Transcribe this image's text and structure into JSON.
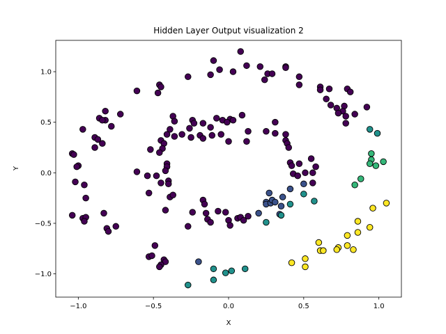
{
  "chart_data": {
    "type": "scatter",
    "title": "Hidden Layer Output visualization 2",
    "xlabel": "X",
    "ylabel": "Y",
    "xlim": [
      -1.15,
      1.15
    ],
    "ylim": [
      -1.23,
      1.31
    ],
    "xticks": [
      -1.0,
      -0.5,
      0.0,
      0.5,
      1.0
    ],
    "xtick_labels": [
      "−1.0",
      "−0.5",
      "0.0",
      "0.5",
      "1.0"
    ],
    "yticks": [
      -1.0,
      -0.5,
      0.0,
      0.5,
      1.0
    ],
    "ytick_labels": [
      "−1.0",
      "−0.5",
      "0.0",
      "0.5",
      "1.0"
    ],
    "grid": false,
    "marker_edge_color": "#000000",
    "color_map": {
      "purple": "#440154",
      "navy": "#3b528b",
      "teal": "#21918c",
      "green": "#35b779",
      "yellow": "#fde725"
    },
    "points": [
      {
        "x": 0.08,
        "y": 1.2,
        "c": "purple"
      },
      {
        "x": -0.1,
        "y": 1.11,
        "c": "purple"
      },
      {
        "x": 0.12,
        "y": 1.06,
        "c": "purple"
      },
      {
        "x": 0.21,
        "y": 1.05,
        "c": "purple"
      },
      {
        "x": 0.38,
        "y": 1.05,
        "c": "purple"
      },
      {
        "x": 0.38,
        "y": 1.04,
        "c": "purple"
      },
      {
        "x": -0.06,
        "y": 1.02,
        "c": "purple"
      },
      {
        "x": 0.03,
        "y": 1.0,
        "c": "purple"
      },
      {
        "x": 0.26,
        "y": 0.98,
        "c": "purple"
      },
      {
        "x": 0.29,
        "y": 0.98,
        "c": "purple"
      },
      {
        "x": -0.12,
        "y": 0.97,
        "c": "purple"
      },
      {
        "x": -0.27,
        "y": 0.95,
        "c": "purple"
      },
      {
        "x": 0.47,
        "y": 0.95,
        "c": "purple"
      },
      {
        "x": 0.24,
        "y": 0.92,
        "c": "purple"
      },
      {
        "x": -0.46,
        "y": 0.87,
        "c": "purple"
      },
      {
        "x": -0.45,
        "y": 0.85,
        "c": "purple"
      },
      {
        "x": 0.47,
        "y": 0.87,
        "c": "purple"
      },
      {
        "x": 0.61,
        "y": 0.85,
        "c": "purple"
      },
      {
        "x": 0.61,
        "y": 0.82,
        "c": "purple"
      },
      {
        "x": 0.67,
        "y": 0.83,
        "c": "purple"
      },
      {
        "x": 0.79,
        "y": 0.83,
        "c": "purple"
      },
      {
        "x": 0.81,
        "y": 0.8,
        "c": "purple"
      },
      {
        "x": -0.61,
        "y": 0.81,
        "c": "purple"
      },
      {
        "x": -0.47,
        "y": 0.79,
        "c": "purple"
      },
      {
        "x": 0.65,
        "y": 0.73,
        "c": "purple"
      },
      {
        "x": 0.68,
        "y": 0.67,
        "c": "purple"
      },
      {
        "x": 0.77,
        "y": 0.66,
        "c": "purple"
      },
      {
        "x": 0.72,
        "y": 0.64,
        "c": "purple"
      },
      {
        "x": 0.92,
        "y": 0.65,
        "c": "purple"
      },
      {
        "x": 0.76,
        "y": 0.61,
        "c": "purple"
      },
      {
        "x": 0.73,
        "y": 0.59,
        "c": "purple"
      },
      {
        "x": 0.84,
        "y": 0.58,
        "c": "purple"
      },
      {
        "x": 0.78,
        "y": 0.56,
        "c": "purple"
      },
      {
        "x": 0.78,
        "y": 0.49,
        "c": "purple"
      },
      {
        "x": -0.82,
        "y": 0.61,
        "c": "purple"
      },
      {
        "x": -0.72,
        "y": 0.58,
        "c": "purple"
      },
      {
        "x": -0.86,
        "y": 0.54,
        "c": "purple"
      },
      {
        "x": -0.82,
        "y": 0.52,
        "c": "purple"
      },
      {
        "x": -0.84,
        "y": 0.52,
        "c": "purple"
      },
      {
        "x": -0.78,
        "y": 0.46,
        "c": "purple"
      },
      {
        "x": -0.37,
        "y": 0.56,
        "c": "purple"
      },
      {
        "x": -0.36,
        "y": 0.51,
        "c": "purple"
      },
      {
        "x": -0.24,
        "y": 0.52,
        "c": "purple"
      },
      {
        "x": -0.23,
        "y": 0.49,
        "c": "purple"
      },
      {
        "x": -0.08,
        "y": 0.54,
        "c": "purple"
      },
      {
        "x": -0.04,
        "y": 0.52,
        "c": "purple"
      },
      {
        "x": 0.01,
        "y": 0.53,
        "c": "purple"
      },
      {
        "x": -0.01,
        "y": 0.5,
        "c": "purple"
      },
      {
        "x": 0.03,
        "y": 0.52,
        "c": "purple"
      },
      {
        "x": -0.17,
        "y": 0.49,
        "c": "purple"
      },
      {
        "x": 0.09,
        "y": 0.57,
        "c": "purple"
      },
      {
        "x": -0.12,
        "y": 0.45,
        "c": "purple"
      },
      {
        "x": -0.26,
        "y": 0.44,
        "c": "purple"
      },
      {
        "x": 0.31,
        "y": 0.5,
        "c": "purple"
      },
      {
        "x": -0.97,
        "y": 0.43,
        "c": "purple"
      },
      {
        "x": -0.89,
        "y": 0.35,
        "c": "purple"
      },
      {
        "x": -0.87,
        "y": 0.33,
        "c": "purple"
      },
      {
        "x": -0.84,
        "y": 0.29,
        "c": "purple"
      },
      {
        "x": -0.89,
        "y": 0.25,
        "c": "purple"
      },
      {
        "x": -0.39,
        "y": 0.43,
        "c": "purple"
      },
      {
        "x": -0.41,
        "y": 0.38,
        "c": "purple"
      },
      {
        "x": -0.45,
        "y": 0.32,
        "c": "purple"
      },
      {
        "x": -0.43,
        "y": 0.29,
        "c": "purple"
      },
      {
        "x": -0.52,
        "y": 0.23,
        "c": "purple"
      },
      {
        "x": -0.44,
        "y": 0.24,
        "c": "purple"
      },
      {
        "x": -0.46,
        "y": 0.2,
        "c": "purple"
      },
      {
        "x": -0.36,
        "y": 0.36,
        "c": "purple"
      },
      {
        "x": -0.31,
        "y": 0.38,
        "c": "purple"
      },
      {
        "x": -0.25,
        "y": 0.35,
        "c": "purple"
      },
      {
        "x": -0.19,
        "y": 0.37,
        "c": "purple"
      },
      {
        "x": -0.17,
        "y": 0.34,
        "c": "purple"
      },
      {
        "x": -0.11,
        "y": 0.37,
        "c": "purple"
      },
      {
        "x": -0.05,
        "y": 0.38,
        "c": "purple"
      },
      {
        "x": 0.0,
        "y": 0.31,
        "c": "purple"
      },
      {
        "x": 0.13,
        "y": 0.41,
        "c": "purple"
      },
      {
        "x": 0.12,
        "y": 0.31,
        "c": "purple"
      },
      {
        "x": 0.25,
        "y": 0.41,
        "c": "purple"
      },
      {
        "x": 0.38,
        "y": 0.38,
        "c": "purple"
      },
      {
        "x": 0.38,
        "y": 0.32,
        "c": "purple"
      },
      {
        "x": 0.39,
        "y": 0.29,
        "c": "purple"
      },
      {
        "x": 0.4,
        "y": 0.25,
        "c": "purple"
      },
      {
        "x": 0.31,
        "y": 0.39,
        "c": "purple"
      },
      {
        "x": -1.04,
        "y": 0.19,
        "c": "purple"
      },
      {
        "x": -1.03,
        "y": 0.18,
        "c": "purple"
      },
      {
        "x": -1.0,
        "y": 0.07,
        "c": "purple"
      },
      {
        "x": -1.01,
        "y": 0.06,
        "c": "purple"
      },
      {
        "x": -1.02,
        "y": -0.09,
        "c": "purple"
      },
      {
        "x": -0.96,
        "y": -0.12,
        "c": "purple"
      },
      {
        "x": -0.95,
        "y": -0.25,
        "c": "purple"
      },
      {
        "x": -0.61,
        "y": 0.01,
        "c": "purple"
      },
      {
        "x": -0.54,
        "y": -0.03,
        "c": "purple"
      },
      {
        "x": -0.48,
        "y": -0.03,
        "c": "purple"
      },
      {
        "x": -0.41,
        "y": 0.09,
        "c": "purple"
      },
      {
        "x": -0.41,
        "y": 0.06,
        "c": "purple"
      },
      {
        "x": -0.42,
        "y": 0.02,
        "c": "purple"
      },
      {
        "x": -0.45,
        "y": -0.1,
        "c": "purple"
      },
      {
        "x": -0.4,
        "y": -0.08,
        "c": "purple"
      },
      {
        "x": -0.4,
        "y": -0.11,
        "c": "purple"
      },
      {
        "x": -0.53,
        "y": -0.2,
        "c": "purple"
      },
      {
        "x": -0.39,
        "y": -0.24,
        "c": "purple"
      },
      {
        "x": -0.37,
        "y": -0.22,
        "c": "purple"
      },
      {
        "x": 0.41,
        "y": 0.1,
        "c": "purple"
      },
      {
        "x": 0.47,
        "y": 0.09,
        "c": "purple"
      },
      {
        "x": 0.42,
        "y": 0.07,
        "c": "purple"
      },
      {
        "x": 0.43,
        "y": -0.01,
        "c": "purple"
      },
      {
        "x": 0.46,
        "y": -0.03,
        "c": "purple"
      },
      {
        "x": 0.55,
        "y": 0.14,
        "c": "purple"
      },
      {
        "x": 0.58,
        "y": 0.06,
        "c": "purple"
      },
      {
        "x": 0.56,
        "y": 0.0,
        "c": "purple"
      },
      {
        "x": 0.56,
        "y": -0.1,
        "c": "purple"
      },
      {
        "x": 0.51,
        "y": 0.0,
        "c": "purple"
      },
      {
        "x": -1.04,
        "y": -0.42,
        "c": "purple"
      },
      {
        "x": -0.97,
        "y": -0.45,
        "c": "purple"
      },
      {
        "x": -0.95,
        "y": -0.44,
        "c": "purple"
      },
      {
        "x": -0.96,
        "y": -0.48,
        "c": "purple"
      },
      {
        "x": -0.83,
        "y": -0.4,
        "c": "purple"
      },
      {
        "x": -0.81,
        "y": -0.55,
        "c": "purple"
      },
      {
        "x": -0.8,
        "y": -0.58,
        "c": "purple"
      },
      {
        "x": -0.75,
        "y": -0.53,
        "c": "purple"
      },
      {
        "x": -0.42,
        "y": -0.37,
        "c": "purple"
      },
      {
        "x": -0.27,
        "y": -0.53,
        "c": "purple"
      },
      {
        "x": -0.24,
        "y": -0.39,
        "c": "purple"
      },
      {
        "x": -0.17,
        "y": -0.27,
        "c": "purple"
      },
      {
        "x": -0.16,
        "y": -0.31,
        "c": "purple"
      },
      {
        "x": -0.15,
        "y": -0.4,
        "c": "purple"
      },
      {
        "x": -0.14,
        "y": -0.46,
        "c": "purple"
      },
      {
        "x": -0.12,
        "y": -0.49,
        "c": "purple"
      },
      {
        "x": -0.07,
        "y": -0.38,
        "c": "purple"
      },
      {
        "x": -0.02,
        "y": -0.39,
        "c": "purple"
      },
      {
        "x": 0.0,
        "y": -0.47,
        "c": "purple"
      },
      {
        "x": 0.01,
        "y": -0.52,
        "c": "purple"
      },
      {
        "x": 0.06,
        "y": -0.45,
        "c": "purple"
      },
      {
        "x": 0.08,
        "y": -0.44,
        "c": "purple"
      },
      {
        "x": 0.1,
        "y": -0.47,
        "c": "purple"
      },
      {
        "x": 0.13,
        "y": -0.43,
        "c": "purple"
      },
      {
        "x": -0.53,
        "y": -0.83,
        "c": "purple"
      },
      {
        "x": -0.51,
        "y": -0.82,
        "c": "purple"
      },
      {
        "x": -0.49,
        "y": -0.72,
        "c": "purple"
      },
      {
        "x": -0.43,
        "y": -0.86,
        "c": "purple"
      },
      {
        "x": -0.42,
        "y": -0.88,
        "c": "purple"
      },
      {
        "x": -0.45,
        "y": -0.91,
        "c": "purple"
      },
      {
        "x": -0.46,
        "y": -0.93,
        "c": "purple"
      },
      {
        "x": 0.2,
        "y": -0.4,
        "c": "navy"
      },
      {
        "x": 0.27,
        "y": -0.2,
        "c": "navy"
      },
      {
        "x": 0.25,
        "y": -0.29,
        "c": "navy"
      },
      {
        "x": 0.25,
        "y": -0.31,
        "c": "navy"
      },
      {
        "x": 0.28,
        "y": -0.3,
        "c": "navy"
      },
      {
        "x": 0.29,
        "y": -0.27,
        "c": "navy"
      },
      {
        "x": 0.31,
        "y": -0.29,
        "c": "navy"
      },
      {
        "x": 0.34,
        "y": -0.41,
        "c": "navy"
      },
      {
        "x": 0.35,
        "y": -0.33,
        "c": "navy"
      },
      {
        "x": 0.36,
        "y": -0.24,
        "c": "navy"
      },
      {
        "x": 0.41,
        "y": -0.16,
        "c": "navy"
      },
      {
        "x": 0.5,
        "y": -0.11,
        "c": "navy"
      },
      {
        "x": -0.2,
        "y": -0.88,
        "c": "navy"
      },
      {
        "x": 0.25,
        "y": -0.49,
        "c": "teal"
      },
      {
        "x": 0.35,
        "y": -0.42,
        "c": "teal"
      },
      {
        "x": 0.41,
        "y": -0.31,
        "c": "teal"
      },
      {
        "x": 0.5,
        "y": -0.21,
        "c": "teal"
      },
      {
        "x": 0.57,
        "y": -0.28,
        "c": "teal"
      },
      {
        "x": 0.94,
        "y": 0.43,
        "c": "teal"
      },
      {
        "x": 0.99,
        "y": 0.39,
        "c": "teal"
      },
      {
        "x": -0.27,
        "y": -1.11,
        "c": "teal"
      },
      {
        "x": -0.1,
        "y": -0.95,
        "c": "teal"
      },
      {
        "x": -0.1,
        "y": -1.06,
        "c": "teal"
      },
      {
        "x": 0.02,
        "y": -0.97,
        "c": "teal"
      },
      {
        "x": 0.11,
        "y": -0.95,
        "c": "teal"
      },
      {
        "x": -0.02,
        "y": -0.99,
        "c": "teal"
      },
      {
        "x": 0.95,
        "y": 0.19,
        "c": "green"
      },
      {
        "x": 0.95,
        "y": 0.13,
        "c": "green"
      },
      {
        "x": 0.94,
        "y": 0.09,
        "c": "green"
      },
      {
        "x": 0.98,
        "y": 0.07,
        "c": "green"
      },
      {
        "x": 1.03,
        "y": 0.11,
        "c": "green"
      },
      {
        "x": 0.88,
        "y": -0.06,
        "c": "green"
      },
      {
        "x": 0.84,
        "y": -0.12,
        "c": "green"
      },
      {
        "x": 0.96,
        "y": -0.35,
        "c": "yellow"
      },
      {
        "x": 1.05,
        "y": -0.3,
        "c": "yellow"
      },
      {
        "x": 0.86,
        "y": -0.48,
        "c": "yellow"
      },
      {
        "x": 0.86,
        "y": -0.59,
        "c": "yellow"
      },
      {
        "x": 0.94,
        "y": -0.54,
        "c": "yellow"
      },
      {
        "x": 0.79,
        "y": -0.62,
        "c": "yellow"
      },
      {
        "x": 0.6,
        "y": -0.69,
        "c": "yellow"
      },
      {
        "x": 0.79,
        "y": -0.72,
        "c": "yellow"
      },
      {
        "x": 0.73,
        "y": -0.74,
        "c": "yellow"
      },
      {
        "x": 0.72,
        "y": -0.76,
        "c": "yellow"
      },
      {
        "x": 0.83,
        "y": -0.76,
        "c": "yellow"
      },
      {
        "x": 0.61,
        "y": -0.77,
        "c": "yellow"
      },
      {
        "x": 0.63,
        "y": -0.77,
        "c": "yellow"
      },
      {
        "x": 0.51,
        "y": -0.85,
        "c": "yellow"
      },
      {
        "x": 0.42,
        "y": -0.89,
        "c": "yellow"
      },
      {
        "x": 0.51,
        "y": -0.93,
        "c": "yellow"
      }
    ]
  }
}
